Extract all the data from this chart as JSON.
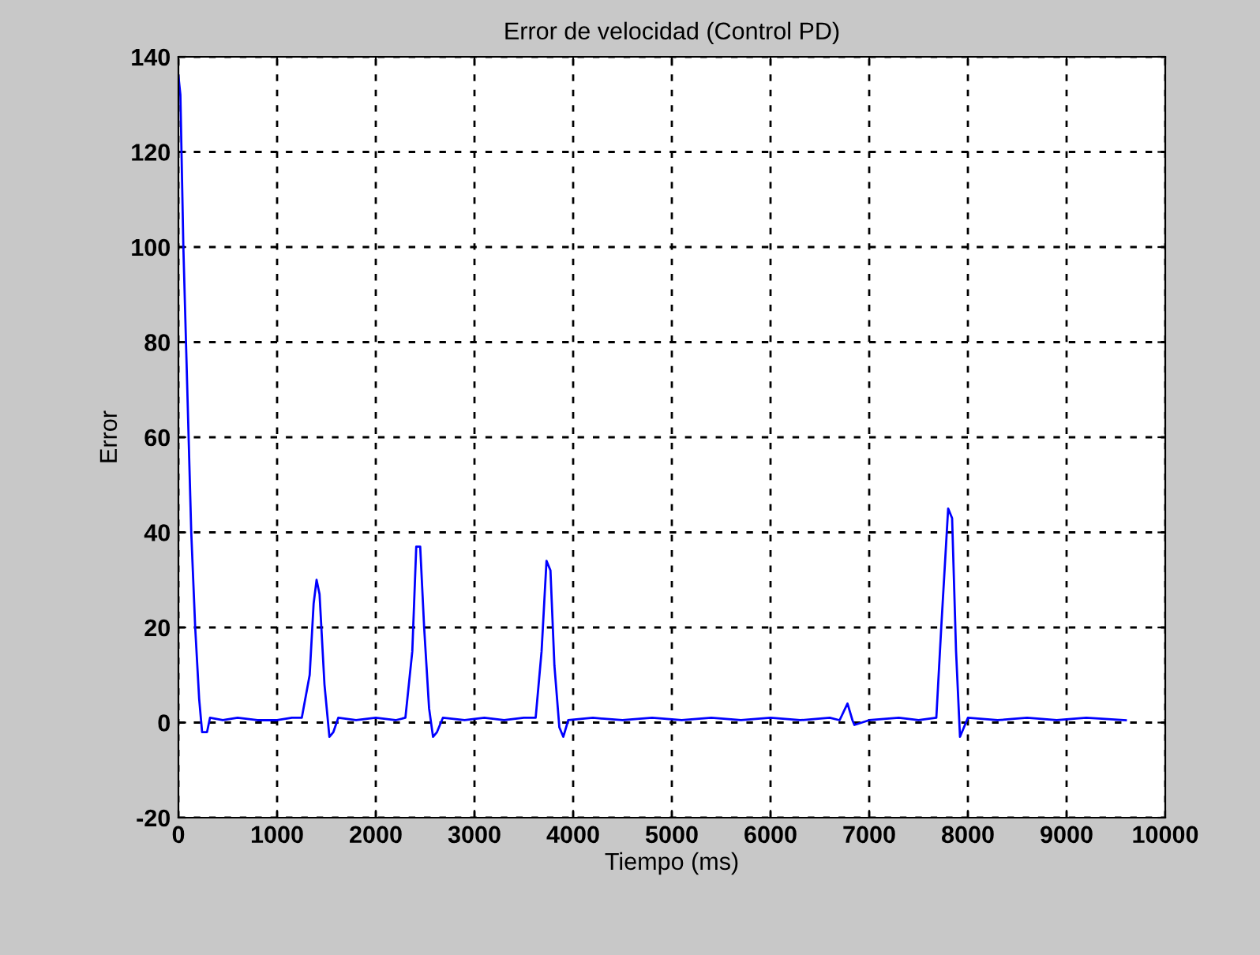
{
  "chart_data": {
    "type": "line",
    "title": "Error de velocidad (Control PD)",
    "xlabel": "Tiempo (ms)",
    "ylabel": "Error",
    "xlim": [
      0,
      10000
    ],
    "ylim": [
      -20,
      140
    ],
    "xticks": [
      0,
      1000,
      2000,
      3000,
      4000,
      5000,
      6000,
      7000,
      8000,
      9000,
      10000
    ],
    "yticks": [
      -20,
      0,
      20,
      40,
      60,
      80,
      100,
      120,
      140
    ],
    "grid": true,
    "line_style": "solid",
    "marker": "none",
    "series": [
      {
        "color": "#0000ff",
        "x": [
          0,
          20,
          50,
          90,
          130,
          170,
          210,
          240,
          290,
          320,
          450,
          600,
          800,
          1000,
          1150,
          1250,
          1330,
          1370,
          1400,
          1430,
          1480,
          1530,
          1570,
          1620,
          1800,
          2000,
          2200,
          2300,
          2370,
          2410,
          2450,
          2490,
          2540,
          2580,
          2620,
          2680,
          2900,
          3100,
          3300,
          3500,
          3620,
          3680,
          3730,
          3770,
          3810,
          3860,
          3900,
          3950,
          4200,
          4500,
          4800,
          5100,
          5400,
          5700,
          6000,
          6300,
          6600,
          6700,
          6780,
          6830,
          6850,
          7000,
          7300,
          7500,
          7680,
          7730,
          7800,
          7840,
          7880,
          7920,
          7960,
          8000,
          8300,
          8600,
          8900,
          9200,
          9600
        ],
        "values": [
          136,
          132,
          100,
          70,
          40,
          20,
          5,
          -2,
          -2,
          1,
          0.5,
          1,
          0.5,
          0.5,
          1,
          1,
          10,
          25,
          30,
          27,
          8,
          -3,
          -2,
          1,
          0.5,
          1,
          0.5,
          1,
          15,
          37,
          37,
          20,
          3,
          -3,
          -2,
          1,
          0.5,
          1,
          0.5,
          1,
          1,
          15,
          34,
          32,
          12,
          -1,
          -3,
          0.5,
          1,
          0.5,
          1,
          0.5,
          1,
          0.5,
          1,
          0.5,
          1,
          0.5,
          4,
          0.5,
          -0.5,
          0.5,
          1,
          0.5,
          1,
          20,
          45,
          43,
          15,
          -3,
          -1,
          1,
          0.5,
          1,
          0.5,
          1,
          0.5
        ]
      }
    ]
  }
}
